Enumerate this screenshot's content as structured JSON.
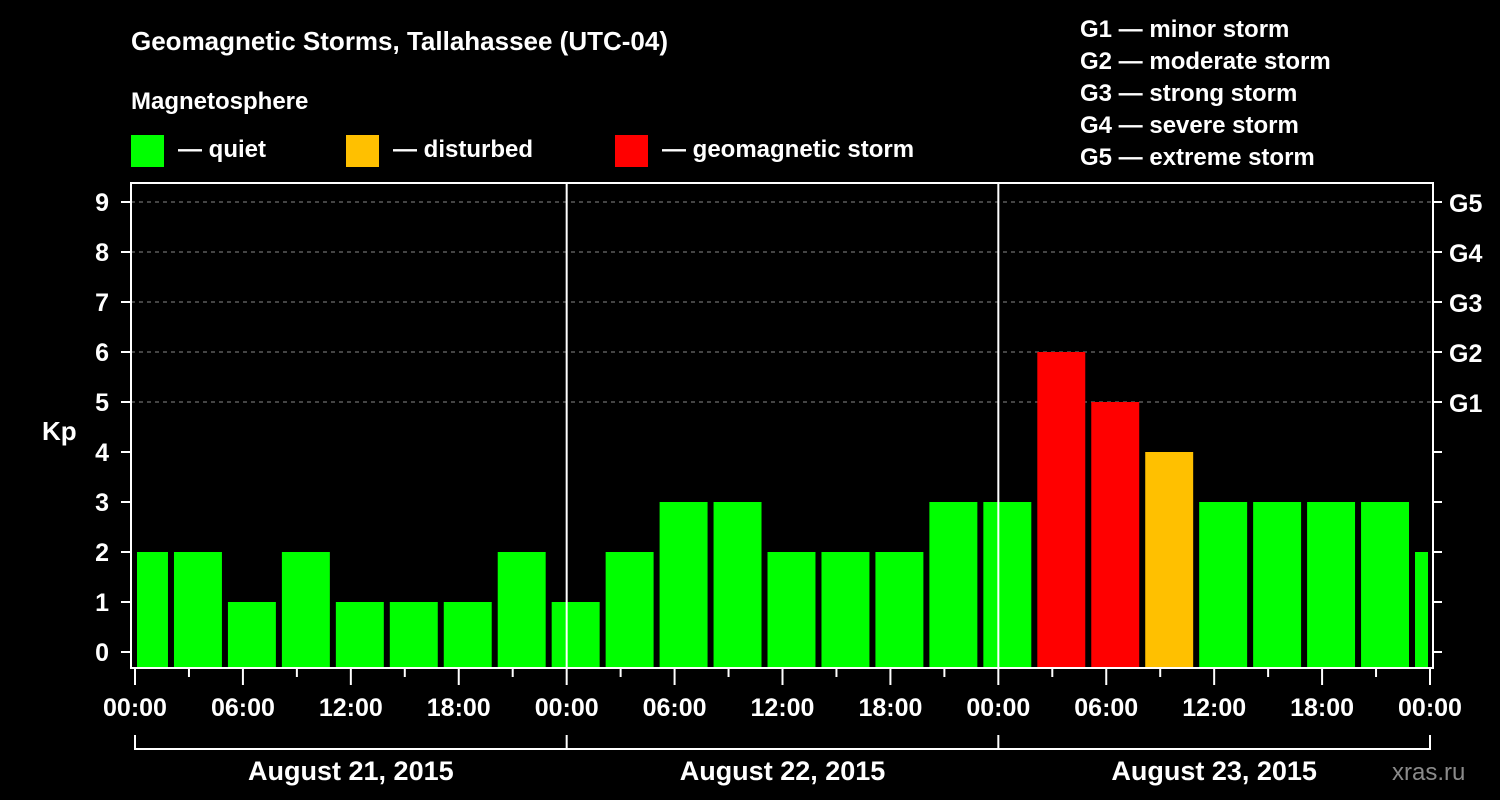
{
  "chart_data": {
    "type": "bar",
    "title": "Geomagnetic Storms, Tallahassee (UTC-04)",
    "subtitle": "Magnetosphere",
    "ylabel": "Kp",
    "ylim": [
      0,
      9
    ],
    "yticks": [
      "0",
      "1",
      "2",
      "3",
      "4",
      "5",
      "6",
      "7",
      "8",
      "9"
    ],
    "right_ticks": [
      {
        "kp": 5,
        "label": "G1"
      },
      {
        "kp": 6,
        "label": "G2"
      },
      {
        "kp": 7,
        "label": "G3"
      },
      {
        "kp": 8,
        "label": "G4"
      },
      {
        "kp": 9,
        "label": "G5"
      }
    ],
    "xtick_labels": [
      "00:00",
      "06:00",
      "12:00",
      "18:00",
      "00:00",
      "06:00",
      "12:00",
      "18:00",
      "00:00",
      "06:00",
      "12:00",
      "18:00",
      "00:00"
    ],
    "days": [
      "August 21, 2015",
      "August 22, 2015",
      "August 23, 2015"
    ],
    "x_range_hours": [
      0,
      72
    ],
    "bar_hours": 3,
    "bar_start_hours": [
      -1,
      2,
      5,
      8,
      11,
      14,
      17,
      20,
      23,
      26,
      29,
      32,
      35,
      38,
      41,
      44,
      47,
      50,
      53,
      56,
      59,
      62,
      65,
      68,
      71
    ],
    "values": [
      2,
      2,
      1,
      2,
      1,
      1,
      1,
      2,
      1,
      2,
      3,
      3,
      2,
      2,
      2,
      3,
      3,
      6,
      5,
      4,
      3,
      3,
      3,
      3,
      2
    ],
    "status": [
      "quiet",
      "quiet",
      "quiet",
      "quiet",
      "quiet",
      "quiet",
      "quiet",
      "quiet",
      "quiet",
      "quiet",
      "quiet",
      "quiet",
      "quiet",
      "quiet",
      "quiet",
      "quiet",
      "quiet",
      "storm",
      "storm",
      "disturbed",
      "quiet",
      "quiet",
      "quiet",
      "quiet",
      "quiet"
    ],
    "colors": {
      "quiet": "#00ff00",
      "disturbed": "#ffc000",
      "storm": "#ff0000"
    },
    "legend": [
      {
        "key": "quiet",
        "label": "— quiet"
      },
      {
        "key": "disturbed",
        "label": "— disturbed"
      },
      {
        "key": "storm",
        "label": "— geomagnetic storm"
      }
    ],
    "g_scale": [
      "G1 — minor storm",
      "G2 — moderate storm",
      "G3 — strong storm",
      "G4 — severe storm",
      "G5 — extreme storm"
    ],
    "grid": true
  },
  "watermark": "xras.ru"
}
